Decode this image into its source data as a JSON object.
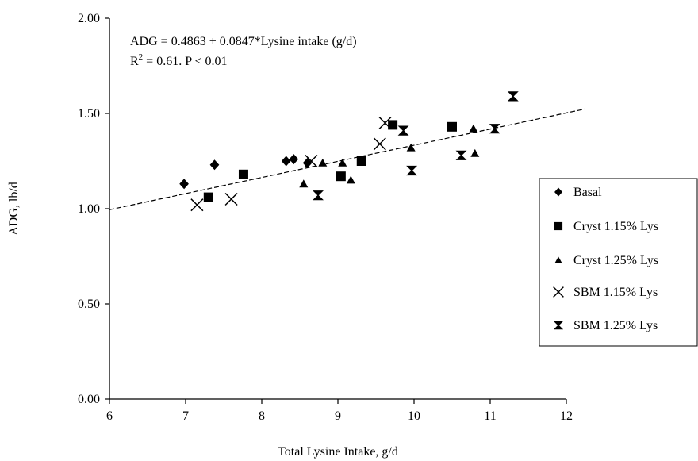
{
  "chart_data": {
    "type": "scatter",
    "xlabel": "Total Lysine Intake, g/d",
    "ylabel": "ADG, lb/d",
    "xlim": [
      6,
      12
    ],
    "ylim": [
      0,
      2
    ],
    "xticks": [
      6,
      7,
      8,
      9,
      10,
      11,
      12
    ],
    "yticks": [
      0,
      0.5,
      1,
      1.5,
      2
    ],
    "xtick_labels": [
      "6",
      "7",
      "8",
      "9",
      "10",
      "11",
      "12"
    ],
    "ytick_labels": [
      "0.00",
      "0.50",
      "1.00",
      "1.50",
      "2.00"
    ],
    "grid": false,
    "legend_position": "right",
    "annotation": {
      "equation": "ADG = 0.4863 + 0.0847*Lysine intake (g/d)",
      "r2_prefix": "R",
      "r2_superscript": "2",
      "r2_rest": " = 0.61. P < 0.01"
    },
    "trendline": {
      "intercept": 0.4863,
      "slope": 0.0847,
      "style": "dashed",
      "x_range": [
        6,
        12.25
      ]
    },
    "series": [
      {
        "name": "Basal",
        "marker": "diamond",
        "points": [
          [
            6.98,
            1.13
          ],
          [
            7.38,
            1.23
          ],
          [
            8.32,
            1.25
          ],
          [
            8.42,
            1.26
          ],
          [
            8.6,
            1.24
          ]
        ]
      },
      {
        "name": "Cryst 1.15% Lys",
        "marker": "square",
        "points": [
          [
            7.3,
            1.06
          ],
          [
            7.76,
            1.18
          ],
          [
            9.04,
            1.17
          ],
          [
            9.31,
            1.25
          ],
          [
            9.72,
            1.44
          ],
          [
            10.5,
            1.43
          ]
        ]
      },
      {
        "name": "Cryst 1.25% Lys",
        "marker": "triangle",
        "points": [
          [
            8.55,
            1.13
          ],
          [
            8.8,
            1.24
          ],
          [
            9.06,
            1.24
          ],
          [
            9.17,
            1.15
          ],
          [
            9.96,
            1.32
          ],
          [
            10.78,
            1.42
          ],
          [
            10.8,
            1.29
          ]
        ]
      },
      {
        "name": "SBM 1.15% Lys",
        "marker": "x",
        "points": [
          [
            7.15,
            1.02
          ],
          [
            7.6,
            1.05
          ],
          [
            8.65,
            1.25
          ],
          [
            9.55,
            1.34
          ],
          [
            9.62,
            1.45
          ]
        ]
      },
      {
        "name": "SBM 1.25% Lys",
        "marker": "hourglass",
        "points": [
          [
            8.74,
            1.07
          ],
          [
            9.86,
            1.41
          ],
          [
            9.97,
            1.2
          ],
          [
            10.62,
            1.28
          ],
          [
            11.06,
            1.42
          ],
          [
            11.3,
            1.59
          ]
        ]
      }
    ]
  }
}
